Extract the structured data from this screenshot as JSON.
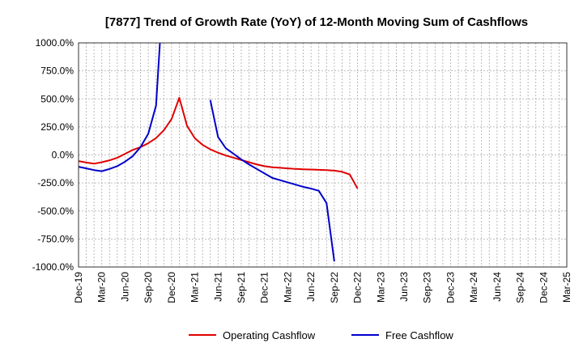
{
  "chart_data": {
    "type": "line",
    "title": "[7877]  Trend of Growth Rate (YoY) of 12-Month Moving Sum of Cashflows",
    "xlabel": "",
    "ylabel": "",
    "ylim": [
      -1000,
      1000
    ],
    "yticks": [
      1000,
      750,
      500,
      250,
      0,
      -250,
      -500,
      -750,
      -1000
    ],
    "ytick_labels": [
      "1000.0%",
      "750.0%",
      "500.0%",
      "250.0%",
      "0.0%",
      "-250.0%",
      "-500.0%",
      "-750.0%",
      "-1000.0%"
    ],
    "xtick_labels": [
      "Dec-19",
      "Mar-20",
      "Jun-20",
      "Sep-20",
      "Dec-20",
      "Mar-21",
      "Jun-21",
      "Sep-21",
      "Dec-21",
      "Mar-22",
      "Jun-22",
      "Sep-22",
      "Dec-22",
      "Mar-23",
      "Jun-23",
      "Sep-23",
      "Dec-23",
      "Mar-24",
      "Jun-24",
      "Sep-24",
      "Dec-24",
      "Mar-25"
    ],
    "grid": true,
    "legend_position": "bottom",
    "series": [
      {
        "name": "Operating Cashflow",
        "color": "#e00000",
        "points": [
          [
            0,
            -55
          ],
          [
            1,
            -68
          ],
          [
            2,
            -78
          ],
          [
            3,
            -65
          ],
          [
            4,
            -48
          ],
          [
            5,
            -25
          ],
          [
            6,
            10
          ],
          [
            7,
            45
          ],
          [
            8,
            70
          ],
          [
            9,
            105
          ],
          [
            10,
            150
          ],
          [
            11,
            220
          ],
          [
            12,
            320
          ],
          [
            13,
            510
          ],
          [
            14,
            260
          ],
          [
            15,
            150
          ],
          [
            16,
            90
          ],
          [
            17,
            50
          ],
          [
            18,
            20
          ],
          [
            19,
            -5
          ],
          [
            20,
            -25
          ],
          [
            21,
            -45
          ],
          [
            22,
            -65
          ],
          [
            23,
            -85
          ],
          [
            24,
            -100
          ],
          [
            25,
            -110
          ],
          [
            26,
            -115
          ],
          [
            27,
            -120
          ],
          [
            28,
            -125
          ],
          [
            29,
            -128
          ],
          [
            30,
            -130
          ],
          [
            31,
            -133
          ],
          [
            32,
            -135
          ],
          [
            33,
            -140
          ],
          [
            34,
            -150
          ],
          [
            35,
            -175
          ],
          [
            36,
            -300
          ]
        ]
      },
      {
        "name": "Free Cashflow",
        "color": "#0000cc",
        "segments": [
          [
            [
              0,
              -105
            ],
            [
              1,
              -120
            ],
            [
              2,
              -135
            ],
            [
              3,
              -145
            ],
            [
              4,
              -125
            ],
            [
              5,
              -100
            ],
            [
              6,
              -60
            ],
            [
              7,
              -10
            ],
            [
              8,
              70
            ],
            [
              9,
              190
            ],
            [
              10,
              440
            ],
            [
              10.5,
              1000
            ]
          ],
          [
            [
              17,
              490
            ],
            [
              18,
              160
            ],
            [
              19,
              60
            ],
            [
              20,
              10
            ],
            [
              21,
              -40
            ],
            [
              22,
              -85
            ],
            [
              23,
              -125
            ],
            [
              24,
              -165
            ],
            [
              25,
              -205
            ],
            [
              26,
              -225
            ],
            [
              27,
              -245
            ],
            [
              28,
              -265
            ],
            [
              29,
              -285
            ],
            [
              30,
              -300
            ],
            [
              31,
              -320
            ],
            [
              32,
              -430
            ],
            [
              33,
              -950
            ]
          ]
        ]
      }
    ]
  }
}
